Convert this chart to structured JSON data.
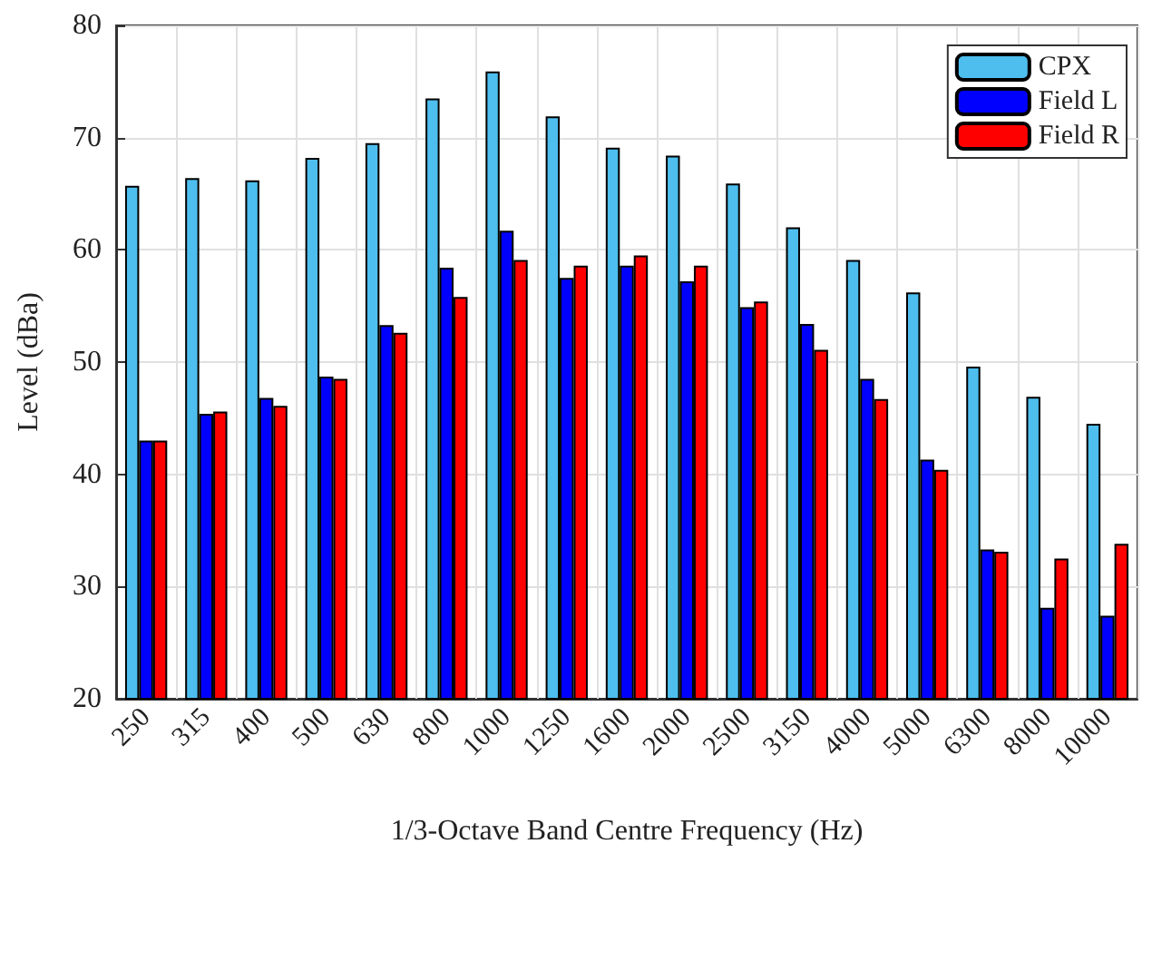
{
  "chart_data": {
    "type": "bar",
    "xlabel": "1/3-Octave Band Centre Frequency (Hz)",
    "ylabel": "Level (dBa)",
    "categories": [
      "250",
      "315",
      "400",
      "500",
      "630",
      "800",
      "1000",
      "1250",
      "1600",
      "2000",
      "2500",
      "3150",
      "4000",
      "5000",
      "6300",
      "8000",
      "10000"
    ],
    "series": [
      {
        "name": "CPX",
        "color": "#4dbeee",
        "values": [
          65.7,
          66.4,
          66.2,
          68.2,
          69.5,
          73.5,
          75.9,
          71.9,
          69.1,
          68.4,
          65.9,
          62.0,
          59.1,
          56.2,
          49.6,
          46.9,
          44.5
        ]
      },
      {
        "name": "Field L",
        "color": "#0000ff",
        "values": [
          43.0,
          45.4,
          46.8,
          48.7,
          53.3,
          58.4,
          61.7,
          57.5,
          58.6,
          57.2,
          54.9,
          53.4,
          48.5,
          41.3,
          33.3,
          28.1,
          27.4
        ]
      },
      {
        "name": "Field R",
        "color": "#ff0000",
        "values": [
          43.0,
          45.6,
          46.1,
          48.5,
          52.6,
          55.8,
          59.1,
          58.6,
          59.5,
          58.6,
          55.4,
          51.1,
          46.7,
          40.4,
          33.1,
          32.5,
          33.8
        ]
      }
    ],
    "ylim": [
      20,
      80
    ],
    "yticks": [
      20,
      30,
      40,
      50,
      60,
      70,
      80
    ],
    "grid": true,
    "legend": "top right"
  }
}
